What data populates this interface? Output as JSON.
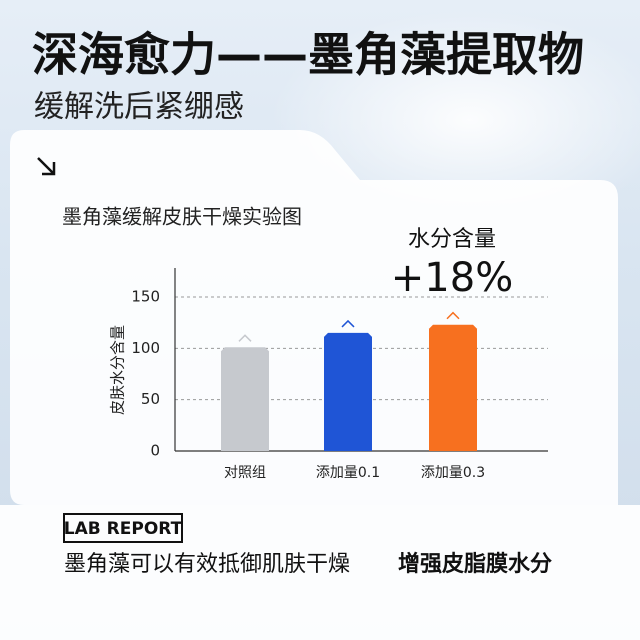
{
  "header": {
    "title": "深海愈力——墨角藻提取物",
    "subtitle": "缓解洗后紧绷感"
  },
  "chart_data": {
    "type": "bar",
    "title": "墨角藻缓解皮肤干燥实验图",
    "y_label": "皮肤水分含量",
    "annotation_label": "水分含量",
    "annotation_value": "+18%",
    "categories": [
      "对照组",
      "添加量0.1",
      "添加量0.3"
    ],
    "values": [
      101,
      115,
      123
    ],
    "colors": [
      "#c6c9ce",
      "#1f55d6",
      "#f7701f"
    ],
    "ylim": [
      0,
      150
    ],
    "yticks": [
      0,
      50,
      100,
      150
    ],
    "grid": true
  },
  "footer": {
    "badge": "LAB REPORT",
    "text": "墨角藻可以有效抵御肌肤干燥",
    "highlight": "增强皮脂膜水分"
  }
}
